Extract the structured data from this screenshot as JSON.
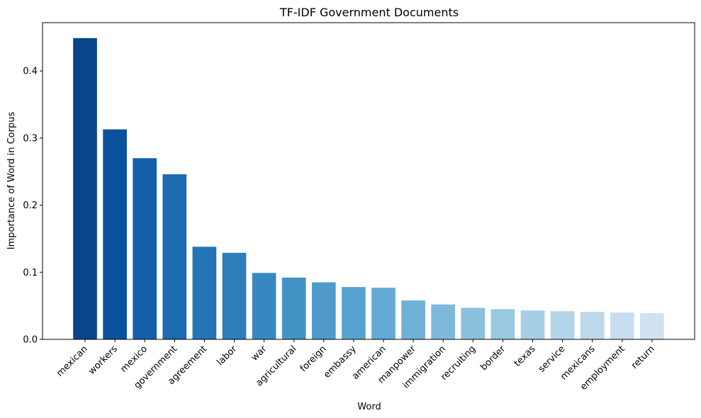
{
  "chart_data": {
    "type": "bar",
    "title": "TF-IDF Government Documents",
    "xlabel": "Word",
    "ylabel": "Importance of Word in Corpus",
    "categories": [
      "mexican",
      "workers",
      "mexico",
      "government",
      "agreement",
      "labor",
      "war",
      "agricultural",
      "foreign",
      "embassy",
      "american",
      "manpower",
      "immigration",
      "recruiting",
      "border",
      "texas",
      "service",
      "mexicans",
      "employment",
      "return"
    ],
    "values": [
      0.449,
      0.313,
      0.27,
      0.246,
      0.138,
      0.129,
      0.099,
      0.092,
      0.085,
      0.078,
      0.077,
      0.058,
      0.052,
      0.047,
      0.045,
      0.043,
      0.042,
      0.041,
      0.04,
      0.039
    ],
    "colors": [
      "#08468c",
      "#0b529e",
      "#1360a8",
      "#1c6aaf",
      "#2474b6",
      "#2d7eb9",
      "#3788c0",
      "#4292c6",
      "#4d9acb",
      "#58a2cf",
      "#62aad3",
      "#6eb1d7",
      "#7db9da",
      "#8cc1dd",
      "#99c8e0",
      "#a6cee4",
      "#b2d4e8",
      "#bed9ec",
      "#c9ddf0",
      "#d0e1f2"
    ],
    "ylim": [
      0,
      0.472
    ],
    "yticks": [
      0.0,
      0.1,
      0.2,
      0.3,
      0.4
    ],
    "ytick_labels": [
      "0.0",
      "0.1",
      "0.2",
      "0.3",
      "0.4"
    ],
    "grid": false,
    "legend": "none"
  }
}
